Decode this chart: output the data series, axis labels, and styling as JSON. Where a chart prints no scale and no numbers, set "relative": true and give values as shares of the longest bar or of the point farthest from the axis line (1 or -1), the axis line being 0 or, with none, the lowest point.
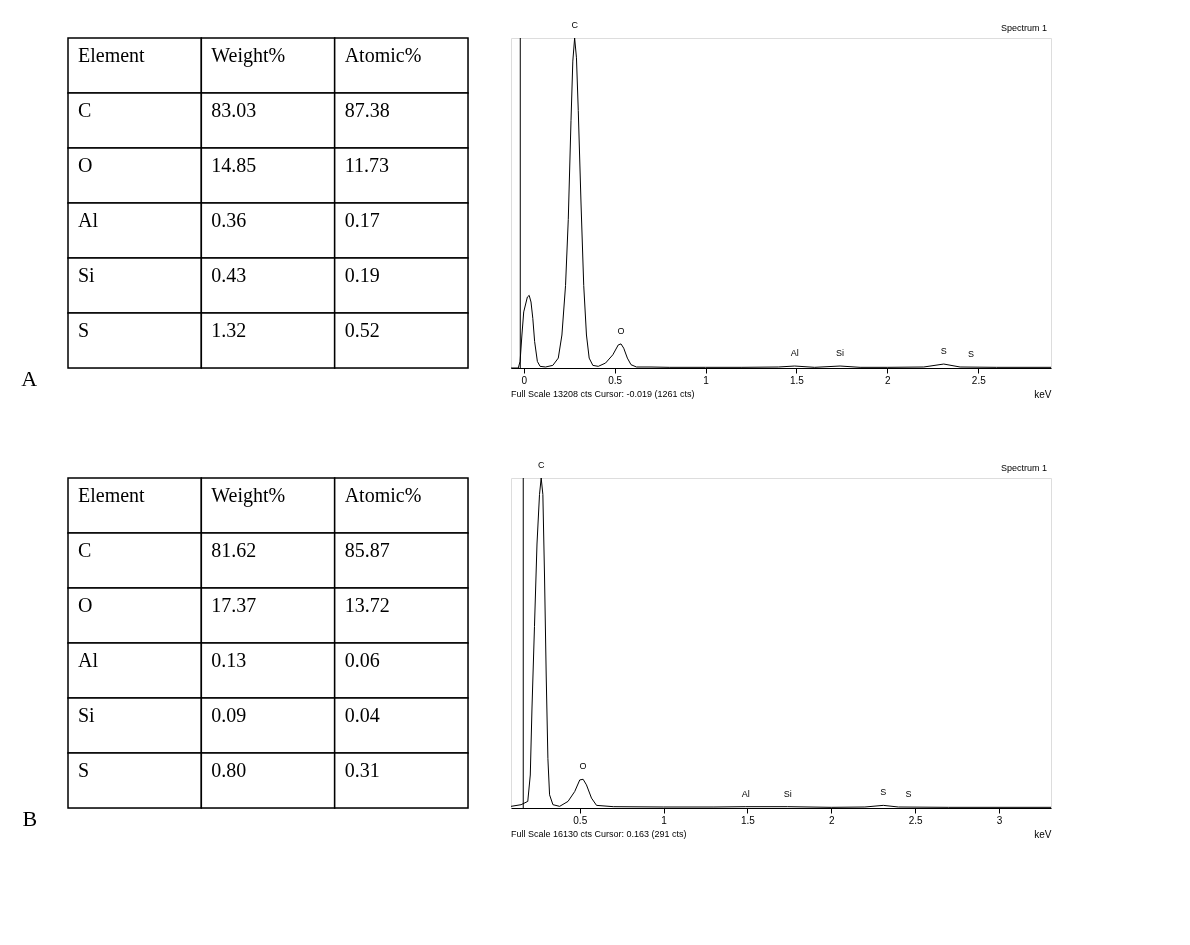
{
  "chart_data": [
    {
      "type": "other",
      "title": "A",
      "ylabel": "Element",
      "categories": [
        "Weight%",
        "Atomic%"
      ],
      "y_categories": [
        "C",
        "O",
        "Al",
        "Si",
        "S"
      ],
      "cell_labels": [
        [
          "83.03",
          "87.38"
        ],
        [
          "14.85",
          "11.73"
        ],
        [
          "0.36",
          "0.17"
        ],
        [
          "0.43",
          "0.19"
        ],
        [
          "1.32",
          "0.52"
        ]
      ]
    },
    {
      "type": "line",
      "relative": true,
      "xlabel": "keV",
      "xlim": [
        -0.07,
        2.9
      ],
      "xticks": [
        0,
        0.5,
        1,
        1.5,
        2,
        2.5
      ],
      "x": [
        -0.07,
        -0.03,
        -0.02,
        -0.01,
        0.0,
        0.02,
        0.03,
        0.04,
        0.05,
        0.06,
        0.075,
        0.09,
        0.12,
        0.16,
        0.19,
        0.21,
        0.23,
        0.245,
        0.26,
        0.27,
        0.28,
        0.29,
        0.3,
        0.315,
        0.33,
        0.345,
        0.36,
        0.38,
        0.41,
        0.45,
        0.49,
        0.52,
        0.535,
        0.55,
        0.57,
        0.59,
        0.62,
        0.7,
        0.8,
        1.0,
        1.2,
        1.4,
        1.49,
        1.6,
        1.74,
        1.85,
        2.0,
        2.2,
        2.31,
        2.4,
        2.6,
        2.9
      ],
      "series": [
        {
          "color": "#000000",
          "values": [
            0,
            0,
            0.02,
            0.1,
            0.17,
            0.215,
            0.22,
            0.2,
            0.15,
            0.08,
            0.02,
            0.005,
            0.003,
            0.008,
            0.03,
            0.1,
            0.25,
            0.45,
            0.75,
            0.93,
            1.0,
            0.94,
            0.78,
            0.5,
            0.25,
            0.1,
            0.03,
            0.008,
            0.005,
            0.015,
            0.04,
            0.07,
            0.073,
            0.06,
            0.03,
            0.01,
            0.003,
            0.003,
            0.002,
            0.002,
            0.002,
            0.003,
            0.006,
            0.002,
            0.006,
            0.002,
            0.002,
            0.003,
            0.012,
            0.003,
            0.002,
            0.002
          ]
        }
      ],
      "ref_lines": [
        {
          "axis": "x",
          "value": -0.019,
          "color": "#000000"
        }
      ],
      "annotations": [
        "Spectrum 1",
        "Full Scale 13208 cts Cursor: -0.019  (1261 cts)",
        {
          "text": "C",
          "x": 0.28,
          "y": 1.0
        },
        {
          "text": "O",
          "x": 0.535,
          "y": 0.073
        },
        {
          "text": "Al",
          "x": 1.49,
          "y": 0.006
        },
        {
          "text": "Si",
          "x": 1.74,
          "y": 0.006
        },
        {
          "text": "S",
          "x": 2.31,
          "y": 0.012
        },
        {
          "text": "S",
          "x": 2.46,
          "y": 0.003
        }
      ]
    },
    {
      "type": "other",
      "title": "B",
      "ylabel": "Element",
      "categories": [
        "Weight%",
        "Atomic%"
      ],
      "y_categories": [
        "C",
        "O",
        "Al",
        "Si",
        "S"
      ],
      "cell_labels": [
        [
          "81.62",
          "85.87"
        ],
        [
          "17.37",
          "13.72"
        ],
        [
          "0.13",
          "0.06"
        ],
        [
          "0.09",
          "0.04"
        ],
        [
          "0.80",
          "0.31"
        ]
      ]
    },
    {
      "type": "line",
      "relative": true,
      "xlabel": "keV",
      "xlim": [
        0.09,
        3.31
      ],
      "xticks": [
        0.5,
        1,
        1.5,
        2,
        2.5,
        3
      ],
      "x": [
        0.09,
        0.15,
        0.19,
        0.205,
        0.215,
        0.23,
        0.245,
        0.26,
        0.27,
        0.28,
        0.29,
        0.3,
        0.31,
        0.32,
        0.34,
        0.38,
        0.43,
        0.47,
        0.5,
        0.52,
        0.54,
        0.57,
        0.6,
        0.7,
        1.0,
        1.3,
        1.49,
        1.74,
        2.0,
        2.2,
        2.31,
        2.4,
        2.7,
        3.0,
        3.31
      ],
      "series": [
        {
          "color": "#000000",
          "values": [
            0.005,
            0.01,
            0.02,
            0.1,
            0.3,
            0.55,
            0.8,
            0.95,
            1.0,
            0.95,
            0.7,
            0.4,
            0.15,
            0.04,
            0.01,
            0.005,
            0.02,
            0.05,
            0.085,
            0.087,
            0.07,
            0.03,
            0.008,
            0.004,
            0.003,
            0.003,
            0.004,
            0.004,
            0.002,
            0.003,
            0.008,
            0.003,
            0.002,
            0.002,
            0.002
          ]
        }
      ],
      "ref_lines": [
        {
          "axis": "x",
          "value": 0.163,
          "color": "#000000"
        }
      ],
      "annotations": [
        "Spectrum 1",
        "Full Scale 16130 cts Cursor: 0.163  (291 cts)",
        {
          "text": "C",
          "x": 0.27,
          "y": 1.0
        },
        {
          "text": "O",
          "x": 0.52,
          "y": 0.087
        },
        {
          "text": "Al",
          "x": 1.49,
          "y": 0.004
        },
        {
          "text": "Si",
          "x": 1.74,
          "y": 0.004
        },
        {
          "text": "S",
          "x": 2.31,
          "y": 0.008
        },
        {
          "text": "S",
          "x": 2.46,
          "y": 0.003
        }
      ]
    }
  ]
}
